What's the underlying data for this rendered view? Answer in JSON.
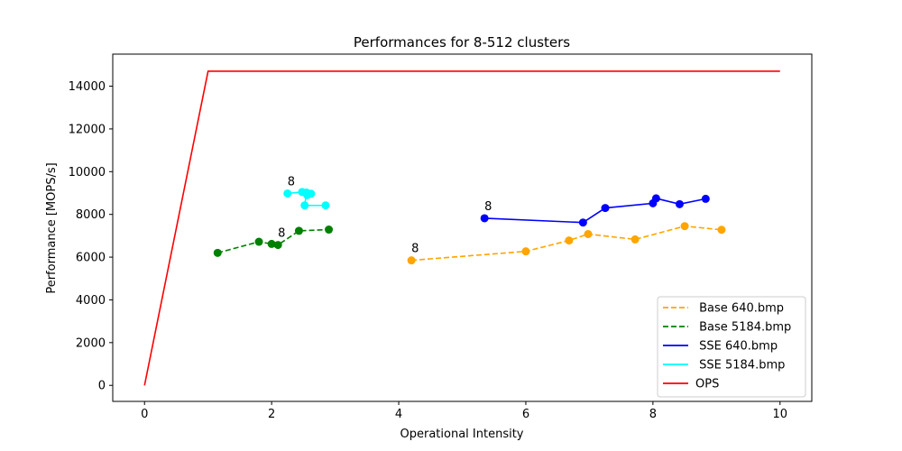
{
  "chart_data": {
    "type": "line",
    "title": "Performances for 8-512 clusters",
    "xlabel": "Operational Intensity",
    "ylabel": "Performance [MOPS/s]",
    "xlim": [
      -0.5,
      10.5
    ],
    "ylim": [
      -750,
      15500
    ],
    "xticks": [
      0,
      2,
      4,
      6,
      8,
      10
    ],
    "yticks": [
      0,
      2000,
      4000,
      6000,
      8000,
      10000,
      12000,
      14000
    ],
    "grid": false,
    "legend_position": "lower-right",
    "series": [
      {
        "name": " Base 640.bmp",
        "color": "#ffa500",
        "linestyle": "dashed",
        "marker": true,
        "x": [
          4.2,
          6.0,
          6.68,
          6.98,
          7.72,
          8.5,
          9.08
        ],
        "y": [
          5850,
          6270,
          6780,
          7080,
          6830,
          7450,
          7280
        ]
      },
      {
        "name": " Base 5184.bmp",
        "color": "#008000",
        "linestyle": "dashed",
        "marker": true,
        "x": [
          1.15,
          1.8,
          2.0,
          2.1,
          2.43,
          2.9
        ],
        "y": [
          6200,
          6720,
          6620,
          6570,
          7230,
          7290
        ]
      },
      {
        "name": " SSE 640.bmp",
        "color": "#0000ff",
        "linestyle": "solid",
        "marker": true,
        "x": [
          5.35,
          6.9,
          7.25,
          8.0,
          8.05,
          8.42,
          8.83
        ],
        "y": [
          7820,
          7620,
          8300,
          8520,
          8750,
          8480,
          8730
        ]
      },
      {
        "name": " SSE 5184.bmp",
        "color": "#00ffff",
        "linestyle": "solid",
        "marker": true,
        "x": [
          2.25,
          2.48,
          2.56,
          2.62,
          2.55,
          2.52,
          2.85
        ],
        "y": [
          8980,
          9050,
          8900,
          8970,
          9020,
          8420,
          8420
        ]
      },
      {
        "name": "OPS",
        "color": "#ff0000",
        "linestyle": "solid",
        "marker": false,
        "x": [
          0,
          1,
          10
        ],
        "y": [
          0,
          14700,
          14700
        ]
      }
    ],
    "annotations": [
      {
        "text": "8",
        "x": 4.2,
        "y": 5850
      },
      {
        "text": "8",
        "x": 2.1,
        "y": 6570
      },
      {
        "text": "8",
        "x": 5.35,
        "y": 7820
      },
      {
        "text": "8",
        "x": 2.25,
        "y": 8980
      }
    ]
  }
}
